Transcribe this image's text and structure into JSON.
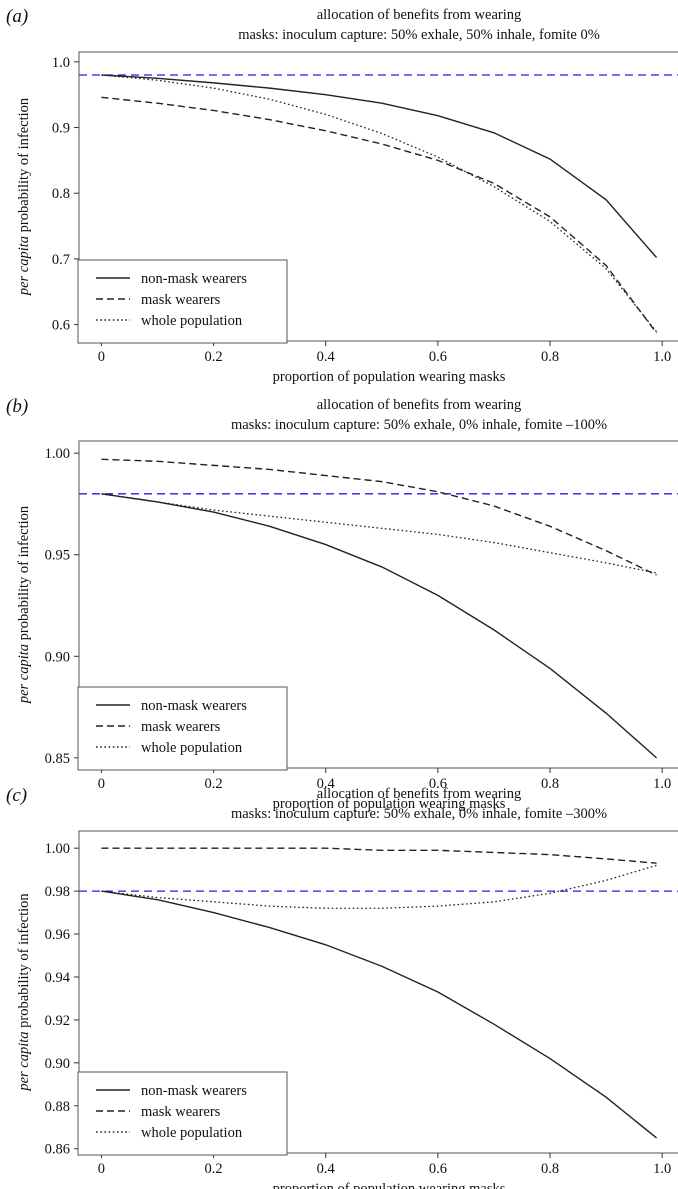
{
  "colors": {
    "reference_line": "#1f1fe6",
    "series_line": "#222222"
  },
  "chart_data": [
    {
      "type": "line",
      "panel": "(a)",
      "title_lines": [
        "allocation of benefits from wearing",
        "masks: inoculum capture: 50% exhale, 50% inhale, fomite 0%"
      ],
      "xlabel": "proportion of population wearing masks",
      "ylabel_italic": "per capita",
      "ylabel_rest": " probability of infection",
      "xlim": [
        -0.04,
        1.03
      ],
      "ylim": [
        0.575,
        1.015
      ],
      "xticks": [
        0,
        0.2,
        0.4,
        0.6,
        0.8,
        1.0
      ],
      "xtick_labels": [
        "0",
        "0.2",
        "0.4",
        "0.6",
        "0.8",
        "1.0"
      ],
      "yticks": [
        0.6,
        0.7,
        0.8,
        0.9,
        1.0
      ],
      "ytick_labels": [
        "0.6",
        "0.7",
        "0.8",
        "0.9",
        "1.0"
      ],
      "reference_line": 0.98,
      "legend_position": "lower-left",
      "series": [
        {
          "name": "non-mask wearers",
          "style": "solid",
          "x": [
            0,
            0.1,
            0.2,
            0.3,
            0.4,
            0.5,
            0.6,
            0.7,
            0.8,
            0.9,
            0.99
          ],
          "y": [
            0.98,
            0.975,
            0.968,
            0.96,
            0.95,
            0.937,
            0.918,
            0.892,
            0.852,
            0.79,
            0.702
          ]
        },
        {
          "name": "mask wearers",
          "style": "dashed",
          "x": [
            0,
            0.1,
            0.2,
            0.3,
            0.4,
            0.5,
            0.6,
            0.7,
            0.8,
            0.9,
            0.99
          ],
          "y": [
            0.946,
            0.937,
            0.926,
            0.912,
            0.895,
            0.875,
            0.85,
            0.815,
            0.764,
            0.69,
            0.587
          ]
        },
        {
          "name": "whole population",
          "style": "dotted",
          "x": [
            0,
            0.1,
            0.2,
            0.3,
            0.4,
            0.5,
            0.6,
            0.7,
            0.8,
            0.9,
            0.99
          ],
          "y": [
            0.98,
            0.972,
            0.96,
            0.943,
            0.92,
            0.891,
            0.855,
            0.81,
            0.757,
            0.685,
            0.589
          ]
        }
      ]
    },
    {
      "type": "line",
      "panel": "(b)",
      "title_lines": [
        "allocation of benefits from wearing",
        "masks: inoculum capture: 50% exhale, 0% inhale, fomite –100%"
      ],
      "xlabel": "proportion of population wearing masks",
      "ylabel_italic": "per capita",
      "ylabel_rest": " probability of infection",
      "xlim": [
        -0.04,
        1.03
      ],
      "ylim": [
        0.845,
        1.006
      ],
      "xticks": [
        0,
        0.2,
        0.4,
        0.6,
        0.8,
        1.0
      ],
      "xtick_labels": [
        "0",
        "0.2",
        "0.4",
        "0.6",
        "0.8",
        "1.0"
      ],
      "yticks": [
        0.85,
        0.9,
        0.95,
        1.0
      ],
      "ytick_labels": [
        "0.85",
        "0.90",
        "0.95",
        "1.00"
      ],
      "reference_line": 0.98,
      "legend_position": "lower-left",
      "series": [
        {
          "name": "non-mask wearers",
          "style": "solid",
          "x": [
            0,
            0.1,
            0.2,
            0.3,
            0.4,
            0.5,
            0.6,
            0.7,
            0.8,
            0.9,
            0.99
          ],
          "y": [
            0.98,
            0.976,
            0.971,
            0.964,
            0.955,
            0.944,
            0.93,
            0.913,
            0.894,
            0.872,
            0.85
          ]
        },
        {
          "name": "mask wearers",
          "style": "dashed",
          "x": [
            0,
            0.1,
            0.2,
            0.3,
            0.4,
            0.5,
            0.6,
            0.7,
            0.8,
            0.9,
            0.99
          ],
          "y": [
            0.997,
            0.996,
            0.994,
            0.992,
            0.989,
            0.986,
            0.981,
            0.974,
            0.964,
            0.952,
            0.94
          ]
        },
        {
          "name": "whole population",
          "style": "dotted",
          "x": [
            0,
            0.1,
            0.2,
            0.3,
            0.4,
            0.5,
            0.6,
            0.7,
            0.8,
            0.9,
            0.99
          ],
          "y": [
            0.98,
            0.976,
            0.972,
            0.969,
            0.966,
            0.963,
            0.96,
            0.956,
            0.951,
            0.946,
            0.941
          ]
        }
      ]
    },
    {
      "type": "line",
      "panel": "(c)",
      "title_lines": [
        "allocation of benefits from wearing",
        "masks: inoculum capture: 50% exhale, 0% inhale, fomite –300%"
      ],
      "xlabel": "proportion of population wearing masks",
      "ylabel_italic": "per capita",
      "ylabel_rest": " probability of infection",
      "xlim": [
        -0.04,
        1.03
      ],
      "ylim": [
        0.858,
        1.008
      ],
      "xticks": [
        0,
        0.2,
        0.4,
        0.6,
        0.8,
        1.0
      ],
      "xtick_labels": [
        "0",
        "0.2",
        "0.4",
        "0.6",
        "0.8",
        "1.0"
      ],
      "yticks": [
        0.86,
        0.88,
        0.9,
        0.92,
        0.94,
        0.96,
        0.98,
        1.0
      ],
      "ytick_labels": [
        "0.86",
        "0.88",
        "0.90",
        "0.92",
        "0.94",
        "0.96",
        "0.98",
        "1.00"
      ],
      "reference_line": 0.98,
      "legend_position": "lower-left",
      "series": [
        {
          "name": "non-mask wearers",
          "style": "solid",
          "x": [
            0,
            0.1,
            0.2,
            0.3,
            0.4,
            0.5,
            0.6,
            0.7,
            0.8,
            0.9,
            0.99
          ],
          "y": [
            0.98,
            0.976,
            0.97,
            0.963,
            0.955,
            0.945,
            0.933,
            0.918,
            0.902,
            0.884,
            0.865
          ]
        },
        {
          "name": "mask wearers",
          "style": "dashed",
          "x": [
            0,
            0.1,
            0.2,
            0.3,
            0.4,
            0.5,
            0.6,
            0.7,
            0.8,
            0.9,
            0.99
          ],
          "y": [
            1.0,
            1.0,
            1.0,
            1.0,
            1.0,
            0.999,
            0.999,
            0.998,
            0.997,
            0.995,
            0.993
          ]
        },
        {
          "name": "whole population",
          "style": "dotted",
          "x": [
            0,
            0.1,
            0.2,
            0.3,
            0.4,
            0.5,
            0.6,
            0.7,
            0.8,
            0.9,
            0.99
          ],
          "y": [
            0.98,
            0.977,
            0.975,
            0.973,
            0.972,
            0.972,
            0.973,
            0.975,
            0.979,
            0.985,
            0.992
          ]
        }
      ]
    }
  ]
}
